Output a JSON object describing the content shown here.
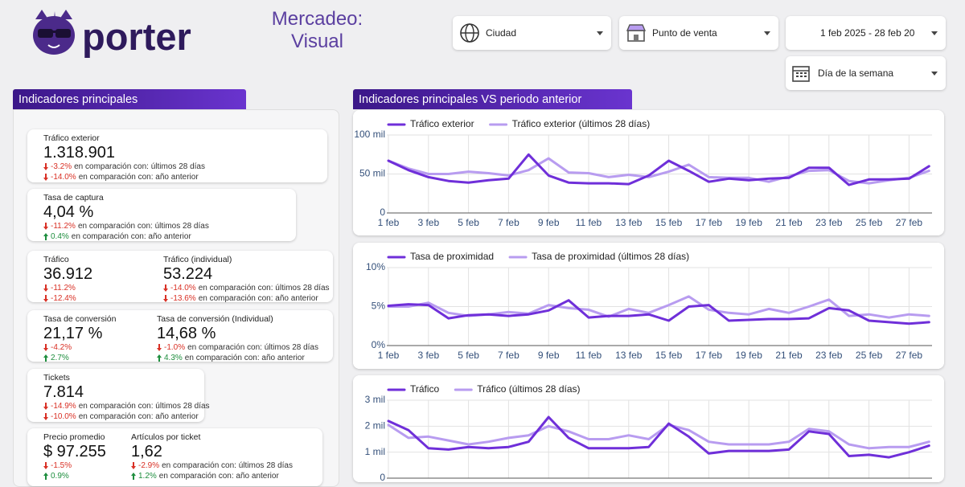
{
  "header": {
    "brand": "porter",
    "title": "Mercadeo: Visual",
    "filters": [
      "Ciudad",
      "Punto de venta",
      "1 feb 2025 - 28 feb 20",
      "Día de la semana"
    ]
  },
  "kpi_panel": {
    "title": "Indicadores principales",
    "cards": [
      {
        "metrics": [
          {
            "label": "Tráfico exterior",
            "value": "1.318.901",
            "comparisons": [
              {
                "change": "-3.2%",
                "text": "en comparación con: últimos 28 días",
                "direction": "down"
              },
              {
                "change": "-14.0%",
                "text": "en comparación con: año anterior",
                "direction": "down"
              }
            ]
          }
        ]
      },
      {
        "metrics": [
          {
            "label": "Tasa de captura",
            "value": "4,04 %",
            "comparisons": [
              {
                "change": "-11.2%",
                "text": "en comparación con: últimos 28 días",
                "direction": "down"
              },
              {
                "change": "0.4%",
                "text": "en comparación con: año anterior",
                "direction": "up"
              }
            ]
          }
        ]
      },
      {
        "metrics": [
          {
            "label": "Tráfico",
            "value": "36.912",
            "comparisons": [
              {
                "change": "-11.2%",
                "direction": "down"
              },
              {
                "change": "-12.4%",
                "direction": "down"
              }
            ]
          },
          {
            "label": "Tráfico (individual)",
            "value": "53.224",
            "comparisons": [
              {
                "change": "-14.0%",
                "text": "en comparación con: últimos 28 días",
                "direction": "down"
              },
              {
                "change": "-13.6%",
                "text": "en comparación con: año anterior",
                "direction": "down"
              }
            ]
          }
        ]
      },
      {
        "metrics": [
          {
            "label": "Tasa de conversión",
            "value": "21,17 %",
            "comparisons": [
              {
                "change": "-4.2%",
                "direction": "down"
              },
              {
                "change": "2.7%",
                "direction": "up"
              }
            ]
          },
          {
            "label": "Tasa de conversión (Individual)",
            "value": "14,68 %",
            "comparisons": [
              {
                "change": "-1.0%",
                "text": "en comparación con: últimos 28 días",
                "direction": "down"
              },
              {
                "change": "4.3%",
                "text": "en comparación con: año anterior",
                "direction": "up"
              }
            ]
          }
        ]
      },
      {
        "metrics": [
          {
            "label": "Tickets",
            "value": "7.814",
            "comparisons": [
              {
                "change": "-14.9%",
                "text": "en comparación con: últimos 28 días",
                "direction": "down"
              },
              {
                "change": "-10.0%",
                "text": "en comparación con: año anterior",
                "direction": "down"
              }
            ]
          }
        ]
      },
      {
        "metrics": [
          {
            "label": "Precio promedio",
            "value": "$ 97.255",
            "comparisons": [
              {
                "change": "-1.5%",
                "direction": "down"
              },
              {
                "change": "0.9%",
                "direction": "up"
              }
            ]
          },
          {
            "label": "Artículos por ticket",
            "value": "1,62",
            "comparisons": [
              {
                "change": "-2.9%",
                "text": "en comparación con: últimos 28 días",
                "direction": "down"
              },
              {
                "change": "1.2%",
                "text": "en comparación con: año anterior",
                "direction": "up"
              }
            ]
          }
        ]
      }
    ]
  },
  "charts_panel": {
    "title": "Indicadores principales VS periodo anterior"
  },
  "chart_data": [
    {
      "type": "line",
      "categories": [
        "1 feb",
        null,
        "3 feb",
        null,
        "5 feb",
        null,
        "7 feb",
        null,
        "9 feb",
        null,
        "11 feb",
        null,
        "13 feb",
        null,
        "15 feb",
        null,
        "17 feb",
        null,
        "19 feb",
        null,
        "21 feb",
        null,
        "23 feb",
        null,
        "25 feb",
        null,
        "27 feb",
        null
      ],
      "series": [
        {
          "name": "Tráfico exterior",
          "color": "#6f2fd9",
          "values": [
            67000,
            55000,
            46000,
            41000,
            39000,
            42000,
            44000,
            75000,
            48000,
            39000,
            38000,
            38000,
            37000,
            48000,
            67000,
            54000,
            40000,
            44000,
            42000,
            44000,
            45000,
            58000,
            58000,
            36000,
            43000,
            43000,
            44000,
            60000
          ]
        },
        {
          "name": "Tráfico exterior (últimos 28 días)",
          "color": "#b89cf0",
          "values": [
            67000,
            57000,
            50000,
            50000,
            53000,
            51000,
            48000,
            55000,
            70000,
            52000,
            51000,
            46000,
            49000,
            46000,
            53000,
            62000,
            46000,
            45000,
            45000,
            40000,
            47000,
            54000,
            55000,
            41000,
            38000,
            42000,
            45000,
            54000
          ]
        }
      ],
      "ylim": [
        0,
        100000
      ],
      "yticks": [
        0,
        {
          "value": 50000,
          "label": "50 mil"
        },
        {
          "value": 100000,
          "label": "100 mil"
        }
      ],
      "grid": true
    },
    {
      "type": "line",
      "categories": [
        "1 feb",
        null,
        "3 feb",
        null,
        "5 feb",
        null,
        "7 feb",
        null,
        "9 feb",
        null,
        "11 feb",
        null,
        "13 feb",
        null,
        "15 feb",
        null,
        "17 feb",
        null,
        "19 feb",
        null,
        "21 feb",
        null,
        "23 feb",
        null,
        "25 feb",
        null,
        "27 feb",
        null
      ],
      "series": [
        {
          "name": "Tasa de proximidad",
          "color": "#6f2fd9",
          "values": [
            5.1,
            5.3,
            5.2,
            3.5,
            3.9,
            4.0,
            3.8,
            4.0,
            4.5,
            5.8,
            3.6,
            3.8,
            3.8,
            4.0,
            3.2,
            5.0,
            5.2,
            3.2,
            3.3,
            3.4,
            3.4,
            3.5,
            4.8,
            4.5,
            3.2,
            3.0,
            2.8,
            3.0
          ]
        },
        {
          "name": "Tasa de proximidad (últimos 28 días)",
          "color": "#b89cf0",
          "values": [
            5.0,
            5.0,
            5.5,
            4.2,
            3.8,
            4.0,
            4.3,
            4.1,
            5.2,
            4.8,
            4.6,
            3.7,
            4.7,
            4.2,
            5.2,
            6.3,
            4.6,
            4.2,
            4.0,
            4.7,
            4.2,
            5.0,
            5.9,
            3.8,
            4.0,
            3.6,
            4.0,
            3.8
          ]
        }
      ],
      "ylim": [
        0,
        10
      ],
      "yticks": [
        {
          "value": 0,
          "label": "0%"
        },
        {
          "value": 5,
          "label": "5%"
        },
        {
          "value": 10,
          "label": "10%"
        }
      ],
      "grid": true
    },
    {
      "type": "line",
      "series": [
        {
          "name": "Tráfico",
          "color": "#6f2fd9",
          "values": [
            2200,
            1850,
            1150,
            1100,
            1200,
            1150,
            1200,
            1400,
            2350,
            1550,
            1150,
            1150,
            1150,
            1200,
            2100,
            1600,
            950,
            1050,
            1050,
            1050,
            1100,
            1800,
            1700,
            850,
            900,
            800,
            1000,
            1250
          ]
        },
        {
          "name": "Tráfico (últimos 28 días)",
          "color": "#b89cf0",
          "values": [
            2050,
            1550,
            1600,
            1450,
            1300,
            1400,
            1550,
            1650,
            2000,
            1800,
            1500,
            1500,
            1650,
            1500,
            2050,
            1850,
            1400,
            1300,
            1300,
            1300,
            1400,
            1900,
            1800,
            1300,
            1150,
            1200,
            1200,
            1400
          ]
        }
      ],
      "ylim": [
        0,
        3000
      ],
      "yticks": [
        0,
        {
          "value": 1000,
          "label": "1 mil"
        },
        {
          "value": 2000,
          "label": "2 mil"
        },
        {
          "value": 3000,
          "label": "3 mil"
        }
      ],
      "grid": true
    }
  ]
}
